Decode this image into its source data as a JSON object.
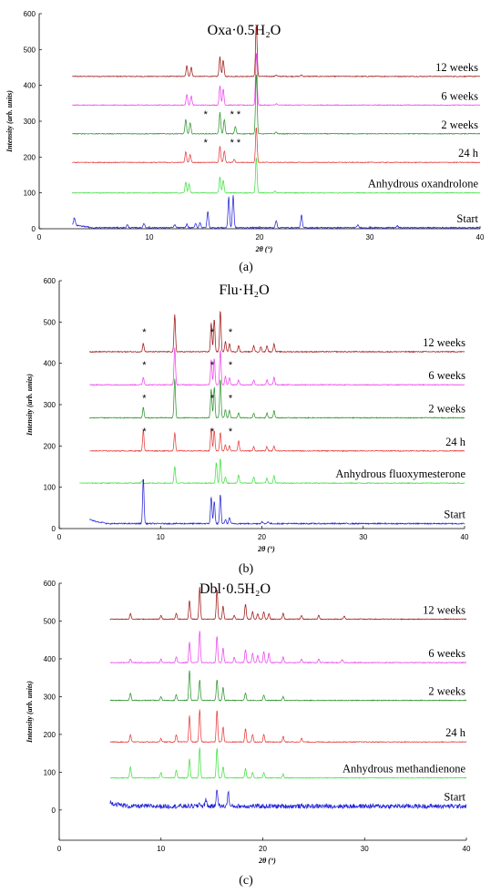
{
  "chart_data": [
    {
      "type": "line",
      "panel_label": "a",
      "title": "Oxa·0.5H₂O",
      "xlabel": "2θ (°)",
      "ylabel": "Intensity (arb. units)",
      "xlim": [
        0,
        40
      ],
      "ylim": [
        0,
        600
      ],
      "x_ticks": [
        "0",
        "10",
        "20",
        "30",
        "40"
      ],
      "y_ticks": [
        "0",
        "100",
        "200",
        "300",
        "400",
        "500",
        "600"
      ],
      "grid": false,
      "series": [
        {
          "name": "12 weeks",
          "color": "#a01818",
          "baseline": 425,
          "x_start": 3,
          "peaks": [
            [
              13.4,
              30
            ],
            [
              13.8,
              25
            ],
            [
              16.4,
              55
            ],
            [
              16.7,
              45
            ],
            [
              19.7,
              145
            ],
            [
              21.5,
              4
            ],
            [
              23.8,
              4
            ]
          ],
          "stars": []
        },
        {
          "name": "6 weeks",
          "color": "#ee44ee",
          "baseline": 345,
          "x_start": 3,
          "peaks": [
            [
              13.4,
              30
            ],
            [
              13.8,
              25
            ],
            [
              16.4,
              55
            ],
            [
              16.7,
              45
            ],
            [
              19.7,
              150
            ],
            [
              21.5,
              4
            ]
          ],
          "stars": []
        },
        {
          "name": "2 weeks",
          "color": "#2f942f",
          "baseline": 265,
          "x_start": 3,
          "peaks": [
            [
              13.3,
              40
            ],
            [
              13.7,
              30
            ],
            [
              16.4,
              60
            ],
            [
              16.8,
              40
            ],
            [
              17.8,
              20
            ],
            [
              19.7,
              170
            ],
            [
              21.5,
              5
            ]
          ],
          "stars": [
            15.1,
            17.5,
            18.1
          ]
        },
        {
          "name": "24 h",
          "color": "#e83c3c",
          "baseline": 185,
          "x_start": 3,
          "peaks": [
            [
              13.3,
              30
            ],
            [
              13.7,
              22
            ],
            [
              16.4,
              45
            ],
            [
              16.8,
              32
            ],
            [
              17.7,
              8
            ],
            [
              19.7,
              100
            ]
          ],
          "stars": [
            15.1,
            17.5,
            18.1
          ]
        },
        {
          "name": "Anhydrous oxandrolone",
          "color": "#44e044",
          "baseline": 100,
          "x_start": 3,
          "peaks": [
            [
              13.3,
              30
            ],
            [
              13.6,
              25
            ],
            [
              16.4,
              45
            ],
            [
              16.7,
              35
            ],
            [
              19.7,
              100
            ],
            [
              21.4,
              5
            ]
          ],
          "stars": []
        },
        {
          "name": "Start",
          "color": "#2323d8",
          "baseline": 3,
          "x_start": 3,
          "peaks": [
            [
              3.2,
              20
            ],
            [
              8,
              8
            ],
            [
              9.5,
              12
            ],
            [
              12.3,
              8
            ],
            [
              13.4,
              10
            ],
            [
              14.2,
              12
            ],
            [
              14.6,
              15
            ],
            [
              15.3,
              45
            ],
            [
              17.2,
              85
            ],
            [
              17.6,
              90
            ],
            [
              21.5,
              20
            ],
            [
              23.8,
              35
            ],
            [
              28.9,
              8
            ],
            [
              32.5,
              5
            ]
          ],
          "stars": []
        }
      ]
    },
    {
      "type": "line",
      "panel_label": "b",
      "title": "Flu·H₂O",
      "xlabel": "2θ (°)",
      "ylabel": "Intensity (arb. units)",
      "xlim": [
        0,
        40
      ],
      "ylim": [
        0,
        600
      ],
      "x_ticks": [
        "0",
        "10",
        "20",
        "30",
        "40"
      ],
      "y_ticks": [
        "0",
        "100",
        "200",
        "300",
        "400",
        "500",
        "600"
      ],
      "grid": false,
      "series": [
        {
          "name": "12 weeks",
          "color": "#a01818",
          "baseline": 428,
          "x_start": 3,
          "peaks": [
            [
              8.3,
              20
            ],
            [
              11.4,
              90
            ],
            [
              15,
              70
            ],
            [
              15.3,
              80
            ],
            [
              15.9,
              100
            ],
            [
              16.4,
              25
            ],
            [
              16.8,
              20
            ],
            [
              17.7,
              15
            ],
            [
              19.2,
              15
            ],
            [
              19.9,
              12
            ],
            [
              20.5,
              15
            ],
            [
              21.2,
              20
            ]
          ],
          "stars": [
            8.4,
            15.1,
            16.9
          ]
        },
        {
          "name": "6 weeks",
          "color": "#ee44ee",
          "baseline": 348,
          "x_start": 3,
          "peaks": [
            [
              8.3,
              18
            ],
            [
              11.4,
              90
            ],
            [
              15,
              60
            ],
            [
              15.3,
              65
            ],
            [
              15.9,
              85
            ],
            [
              16.4,
              20
            ],
            [
              16.8,
              18
            ],
            [
              17.7,
              12
            ],
            [
              19.2,
              12
            ],
            [
              20.5,
              12
            ],
            [
              21.2,
              18
            ]
          ],
          "stars": [
            8.4,
            15.1,
            16.9
          ]
        },
        {
          "name": "2 weeks",
          "color": "#2f942f",
          "baseline": 268,
          "x_start": 3,
          "peaks": [
            [
              8.3,
              25
            ],
            [
              11.4,
              95
            ],
            [
              15,
              70
            ],
            [
              15.3,
              75
            ],
            [
              15.9,
              95
            ],
            [
              16.4,
              20
            ],
            [
              16.8,
              18
            ],
            [
              17.7,
              12
            ],
            [
              19.2,
              12
            ],
            [
              20.5,
              12
            ],
            [
              21.2,
              18
            ]
          ],
          "stars": [
            8.4,
            15.1,
            16.9
          ]
        },
        {
          "name": "24 h",
          "color": "#e83c3c",
          "baseline": 188,
          "x_start": 3,
          "peaks": [
            [
              8.3,
              50
            ],
            [
              11.4,
              45
            ],
            [
              15,
              55
            ],
            [
              15.3,
              50
            ],
            [
              15.9,
              45
            ],
            [
              16.4,
              15
            ],
            [
              16.8,
              12
            ],
            [
              17.7,
              25
            ],
            [
              19.2,
              10
            ],
            [
              20.5,
              10
            ],
            [
              21.2,
              12
            ]
          ],
          "stars": [
            8.4,
            15.1,
            16.9
          ]
        },
        {
          "name": "Anhydrous fluoxymesterone",
          "color": "#44e044",
          "baseline": 110,
          "x_start": 2,
          "peaks": [
            [
              8.2,
              5
            ],
            [
              11.4,
              40
            ],
            [
              15.5,
              50
            ],
            [
              15.9,
              60
            ],
            [
              16.4,
              15
            ],
            [
              17.7,
              20
            ],
            [
              19.2,
              15
            ],
            [
              20.5,
              12
            ],
            [
              21.2,
              18
            ]
          ],
          "stars": []
        },
        {
          "name": "Start",
          "color": "#2323d8",
          "baseline": 12,
          "x_start": 3,
          "peaks": [
            [
              8.3,
              110
            ],
            [
              15,
              65
            ],
            [
              15.3,
              55
            ],
            [
              15.9,
              70
            ],
            [
              16.4,
              10
            ],
            [
              16.8,
              15
            ],
            [
              20,
              5
            ],
            [
              20.6,
              5
            ]
          ],
          "stars": []
        }
      ]
    },
    {
      "type": "line",
      "panel_label": "c",
      "title": "Dbl·0.5H₂O",
      "xlabel": "2θ (°)",
      "ylabel": "Intensity (arb. units)",
      "xlim": [
        0,
        40
      ],
      "ylim": [
        -100,
        600
      ],
      "x_ticks": [
        "0",
        "10",
        "20",
        "30",
        "40"
      ],
      "y_ticks": [
        "0",
        "100",
        "200",
        "300",
        "400",
        "500",
        "600"
      ],
      "grid": false,
      "series": [
        {
          "name": "12 weeks",
          "color": "#a01818",
          "baseline": 505,
          "x_start": 5,
          "peaks": [
            [
              7,
              15
            ],
            [
              10,
              10
            ],
            [
              11.5,
              15
            ],
            [
              12.8,
              50
            ],
            [
              13.8,
              85
            ],
            [
              15.5,
              80
            ],
            [
              16.1,
              35
            ],
            [
              17.2,
              10
            ],
            [
              18.3,
              40
            ],
            [
              19,
              20
            ],
            [
              19.5,
              15
            ],
            [
              20.1,
              20
            ],
            [
              20.6,
              15
            ],
            [
              22,
              15
            ],
            [
              23.8,
              10
            ],
            [
              25.5,
              10
            ],
            [
              28,
              8
            ]
          ],
          "stars": []
        },
        {
          "name": "6 weeks",
          "color": "#ee44ee",
          "baseline": 390,
          "x_start": 5,
          "peaks": [
            [
              7,
              10
            ],
            [
              10,
              10
            ],
            [
              11.5,
              15
            ],
            [
              12.8,
              55
            ],
            [
              13.8,
              85
            ],
            [
              15.5,
              70
            ],
            [
              16.1,
              40
            ],
            [
              17.2,
              15
            ],
            [
              18.3,
              35
            ],
            [
              19,
              25
            ],
            [
              19.5,
              20
            ],
            [
              20.1,
              30
            ],
            [
              20.6,
              25
            ],
            [
              22,
              15
            ],
            [
              23.8,
              10
            ],
            [
              25.5,
              10
            ],
            [
              27.8,
              8
            ]
          ],
          "stars": []
        },
        {
          "name": "2 weeks",
          "color": "#2f942f",
          "baseline": 290,
          "x_start": 5,
          "peaks": [
            [
              7,
              20
            ],
            [
              10,
              10
            ],
            [
              11.5,
              15
            ],
            [
              12.8,
              80
            ],
            [
              13.8,
              55
            ],
            [
              15.5,
              55
            ],
            [
              16.1,
              35
            ],
            [
              18.3,
              20
            ],
            [
              20.1,
              15
            ],
            [
              22,
              10
            ]
          ],
          "stars": []
        },
        {
          "name": "24 h",
          "color": "#e83c3c",
          "baseline": 180,
          "x_start": 5,
          "peaks": [
            [
              7,
              20
            ],
            [
              10,
              10
            ],
            [
              11.5,
              20
            ],
            [
              12.8,
              70
            ],
            [
              13.8,
              85
            ],
            [
              15.5,
              85
            ],
            [
              16.1,
              40
            ],
            [
              18.3,
              35
            ],
            [
              19,
              20
            ],
            [
              20.1,
              20
            ],
            [
              22,
              15
            ],
            [
              23.8,
              10
            ]
          ],
          "stars": []
        },
        {
          "name": "Anhydrous methandienone",
          "color": "#44e044",
          "baseline": 85,
          "x_start": 5,
          "peaks": [
            [
              7,
              30
            ],
            [
              10,
              15
            ],
            [
              11.5,
              20
            ],
            [
              12.8,
              50
            ],
            [
              13.8,
              80
            ],
            [
              15.5,
              80
            ],
            [
              16.1,
              30
            ],
            [
              18.3,
              25
            ],
            [
              19,
              15
            ],
            [
              20.1,
              15
            ],
            [
              22,
              10
            ]
          ],
          "stars": []
        },
        {
          "name": "Start",
          "color": "#2323d8",
          "baseline": 10,
          "x_start": 5,
          "peaks": [
            [
              14.4,
              20
            ],
            [
              15.5,
              50
            ],
            [
              16.6,
              40
            ],
            [
              13.8,
              10
            ]
          ],
          "stars": []
        }
      ]
    }
  ],
  "panel_captions": [
    "(a)",
    "(b)",
    "(c)"
  ]
}
